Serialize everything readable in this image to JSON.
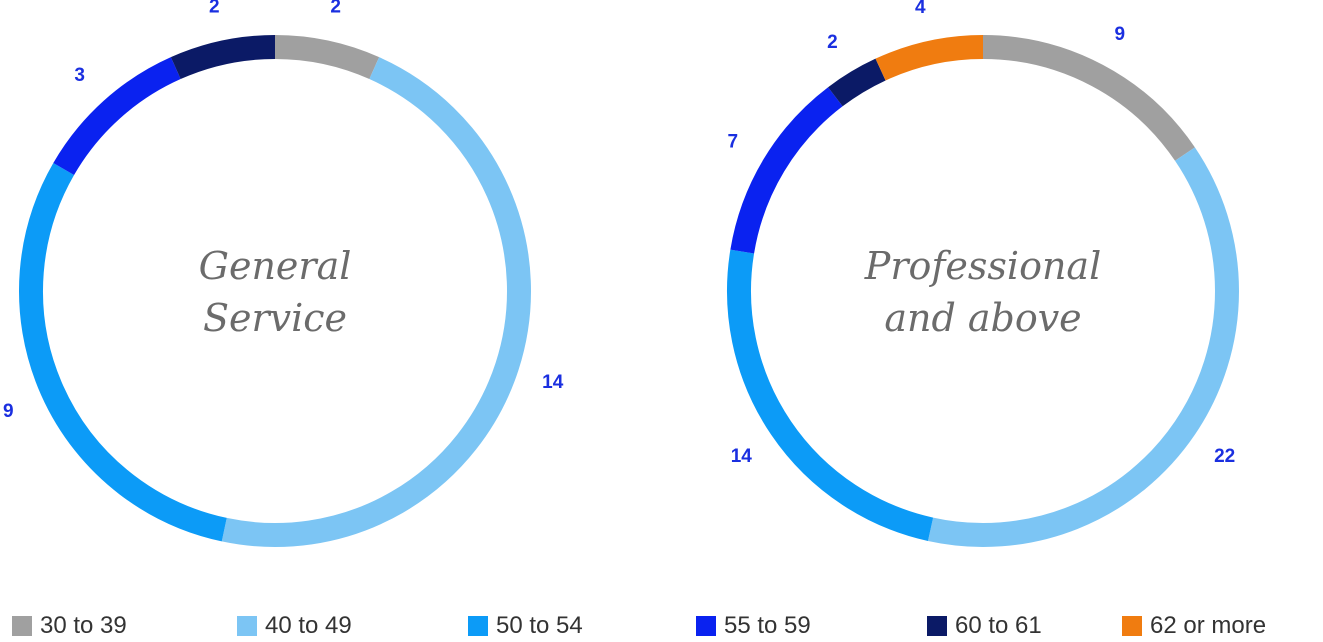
{
  "chart_data": [
    {
      "type": "pie",
      "center_label": [
        "General",
        "Service"
      ],
      "categories": [
        "30 to 39",
        "40 to 49",
        "50 to 54",
        "55 to 59",
        "60 to 61",
        "62 or more"
      ],
      "values": [
        2,
        14,
        9,
        3,
        2,
        0
      ]
    },
    {
      "type": "pie",
      "center_label": [
        "Professional",
        "and above"
      ],
      "categories": [
        "30 to 39",
        "40 to 49",
        "50 to 54",
        "55 to 59",
        "60 to 61",
        "62 or more"
      ],
      "values": [
        9,
        22,
        14,
        7,
        2,
        4
      ]
    }
  ],
  "legend": [
    {
      "label": "30 to 39",
      "color": "#a0a0a0"
    },
    {
      "label": "40 to 49",
      "color": "#7cc5f4"
    },
    {
      "label": "50 to 54",
      "color": "#0c9bf7"
    },
    {
      "label": "55 to 59",
      "color": "#0a22f0"
    },
    {
      "label": "60 to 61",
      "color": "#0b1a66"
    },
    {
      "label": "62 or more",
      "color": "#f07c10"
    }
  ]
}
